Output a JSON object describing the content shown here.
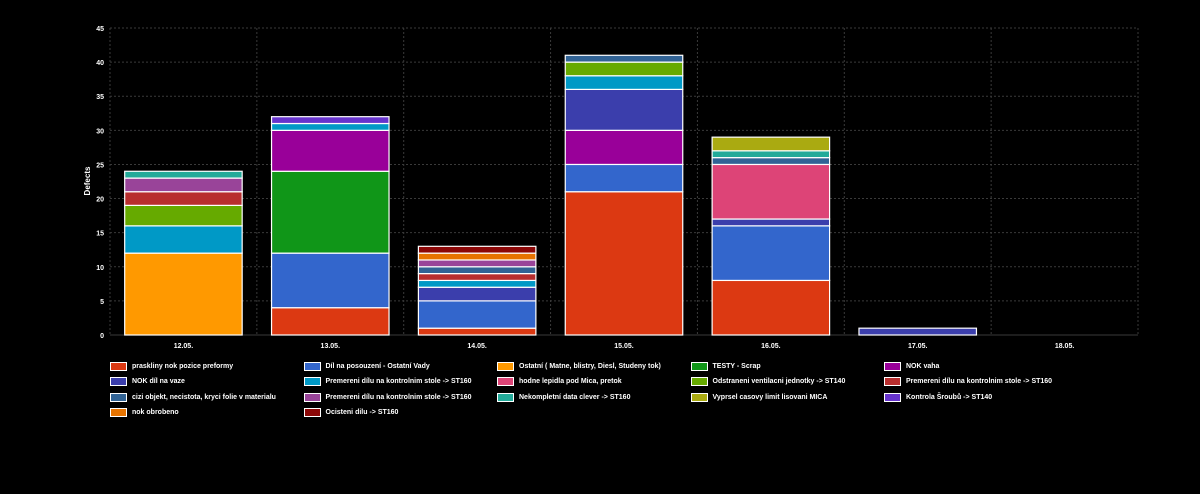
{
  "chart_data": {
    "type": "bar",
    "stacked": true,
    "ylabel": "Defects",
    "xlabel": "",
    "ylim": [
      0,
      45
    ],
    "yticks": [
      "0",
      "5",
      "10",
      "15",
      "20",
      "25",
      "30",
      "35",
      "40",
      "45"
    ],
    "grid": true,
    "legend_position": "bottom",
    "categories": [
      "12.05.",
      "13.05.",
      "14.05.",
      "15.05.",
      "16.05.",
      "17.05.",
      "18.05."
    ],
    "series": [
      {
        "name": "praskliny nok pozice preformy",
        "color": "#dc3912",
        "values": [
          0,
          4,
          1,
          21,
          8,
          0,
          0
        ]
      },
      {
        "name": "Díl na posouzení - Ostatní Vady",
        "color": "#3366cc",
        "values": [
          0,
          8,
          4,
          4,
          8,
          0,
          0
        ]
      },
      {
        "name": "Ostatní ( Matne, blistry, Diesl, Studeny tok)",
        "color": "#ff9900",
        "values": [
          12,
          0,
          0,
          0,
          0,
          0,
          0
        ]
      },
      {
        "name": "TESTY - Scrap",
        "color": "#109618",
        "values": [
          0,
          12,
          0,
          0,
          0,
          0,
          0
        ]
      },
      {
        "name": "NOK vaha",
        "color": "#990099",
        "values": [
          0,
          6,
          0,
          5,
          0,
          0,
          0
        ]
      },
      {
        "name": "NOK díl na vaze",
        "color": "#3b3eac",
        "values": [
          0,
          0,
          2,
          6,
          1,
          1,
          0
        ]
      },
      {
        "name": "Premereni dílu na kontrolnim stole -&gt; ST160",
        "color": "#0099c6",
        "values": [
          4,
          1,
          1,
          2,
          0,
          0,
          0
        ]
      },
      {
        "name": "hodne lepidla pod Mica, pretok",
        "color": "#dd4477",
        "values": [
          0,
          0,
          0,
          0,
          8,
          0,
          0
        ]
      },
      {
        "name": "Odstraneni ventilacni jednotky -&gt; ST140",
        "color": "#66aa00",
        "values": [
          3,
          0,
          0,
          2,
          0,
          0,
          0
        ]
      },
      {
        "name": "Premereni dílu na kontrolnim stole -&gt; ST160",
        "color": "#b82e2e",
        "values": [
          2,
          0,
          1,
          0,
          0,
          0,
          0
        ]
      },
      {
        "name": "cizi objekt, necistota, kryci folie v materialu",
        "color": "#316395",
        "values": [
          0,
          0,
          1,
          1,
          1,
          0,
          0
        ]
      },
      {
        "name": "Premereni dílu na kontrolnim stole -&gt; ST160",
        "color": "#994499",
        "values": [
          2,
          0,
          1,
          0,
          0,
          0,
          0
        ]
      },
      {
        "name": "Nekompletní data clever -&gt; ST160",
        "color": "#22aa99",
        "values": [
          1,
          0,
          0,
          0,
          1,
          0,
          0
        ]
      },
      {
        "name": "Vyprsel casovy limit lisovani MICA",
        "color": "#aaaa11",
        "values": [
          0,
          0,
          0,
          0,
          2,
          0,
          0
        ]
      },
      {
        "name": "Kontrola Šroubů -&gt; ST140",
        "color": "#6633cc",
        "values": [
          0,
          1,
          0,
          0,
          0,
          0,
          0
        ]
      },
      {
        "name": "nok obrobeno",
        "color": "#e67300",
        "values": [
          0,
          0,
          1,
          0,
          0,
          0,
          0
        ]
      },
      {
        "name": "Ocisteni dilu -&gt; ST160",
        "color": "#8b0707",
        "values": [
          0,
          0,
          1,
          0,
          0,
          0,
          0
        ]
      }
    ]
  }
}
